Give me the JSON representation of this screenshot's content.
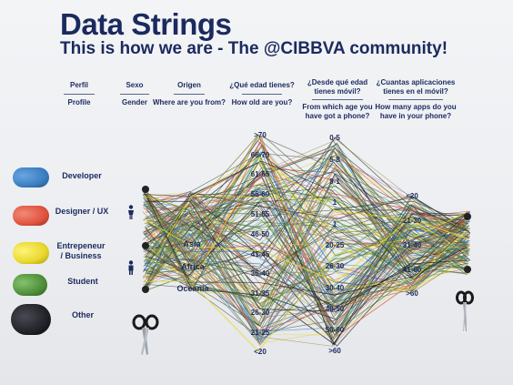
{
  "title": "Data Strings",
  "subtitle": "This is how we are - The @CIBBVA community!",
  "headers": {
    "perfil": [
      "Perfil",
      "Profile"
    ],
    "sexo": [
      "Sexo",
      "Gender"
    ],
    "origen": [
      "Origen",
      "Where are you from?"
    ],
    "edad": [
      "¿Qué edad tienes?",
      "How old are you?"
    ],
    "movil": [
      "¿Desde qué edad",
      "tienes móvil?",
      "From which age you",
      "have got a phone?"
    ],
    "apps": [
      "¿Cuantas aplicaciones",
      "tienes en el móvil?",
      "How many apps do you",
      "have in your phone?"
    ]
  },
  "profiles": [
    "Developer",
    "Designer / UX",
    "Entrepeneur",
    "/ Business",
    "Student",
    "Other"
  ],
  "origins": [
    "Asia",
    "Africa",
    "Oceania"
  ],
  "age_ticks": [
    ">70",
    "66-70",
    "61-65",
    "56-60",
    "51-55",
    "46-50",
    "41-45",
    "36-40",
    "31-35",
    "26-30",
    "21-25",
    "<20"
  ],
  "phone_age_ticks": [
    "0-5",
    "5-8",
    "9-1",
    "1",
    "1",
    "20-25",
    "26-30",
    "30-40",
    "40-50",
    "50-60",
    ">60"
  ],
  "apps_ticks": [
    "<20",
    "21-30",
    "31-40",
    "41-60",
    ">60"
  ],
  "spool_colors": {
    "developer": "#3a7fc2",
    "designer": "#e0543f",
    "entrepreneur": "#e8d82c",
    "student": "#4f8f3a",
    "other": "#1e1e24"
  }
}
